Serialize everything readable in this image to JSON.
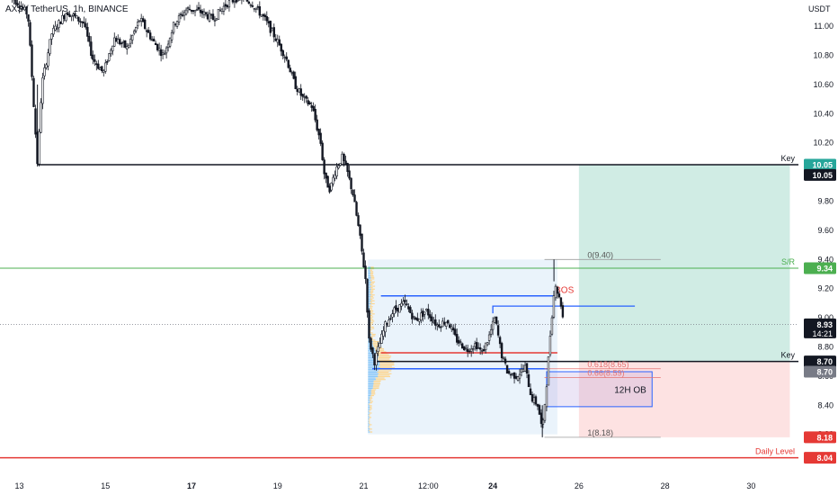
{
  "header": {
    "title": "AXS / TetherUS, 1h, BINANCE",
    "unit": "USDT"
  },
  "colors": {
    "candle": "#131722",
    "key_line": "#131722",
    "sr_line": "#4caf50",
    "daily_level": "#e53935",
    "bos": "#e53935",
    "ob_border": "#2962ff",
    "profit_zone": "#d0ece4",
    "loss_zone": "#fde2e2",
    "range_box": "#eaf3fb",
    "fib_text": "#e57373"
  },
  "chart_data": {
    "type": "candlestick",
    "symbol": "AXS / TetherUS",
    "timeframe": "1h",
    "exchange": "BINANCE",
    "ylim": [
      7.92,
      11.18
    ],
    "xlim": [
      12.55,
      31.1
    ],
    "x_ticks": [
      {
        "x": 13,
        "label": "13"
      },
      {
        "x": 15,
        "label": "15"
      },
      {
        "x": 17,
        "label": "17",
        "bold": true
      },
      {
        "x": 19,
        "label": "19"
      },
      {
        "x": 21,
        "label": "21"
      },
      {
        "x": 22.5,
        "label": "12:00"
      },
      {
        "x": 24,
        "label": "24",
        "bold": true
      },
      {
        "x": 26,
        "label": "26"
      },
      {
        "x": 28,
        "label": "28"
      },
      {
        "x": 30,
        "label": "30"
      }
    ],
    "y_ticks": [
      "11.00",
      "10.80",
      "10.60",
      "10.40",
      "10.20",
      "10.00",
      "9.80",
      "9.60",
      "9.40",
      "9.20",
      "9.00",
      "8.80",
      "8.60",
      "8.40",
      "8.20"
    ],
    "price_path": [
      {
        "x": 12.75,
        "y": 11.22
      },
      {
        "x": 13.0,
        "y": 11.15
      },
      {
        "x": 13.2,
        "y": 11.08
      },
      {
        "x": 13.3,
        "y": 10.62
      },
      {
        "x": 13.42,
        "y": 10.05
      },
      {
        "x": 13.52,
        "y": 10.6
      },
      {
        "x": 13.75,
        "y": 10.95
      },
      {
        "x": 14.1,
        "y": 11.1
      },
      {
        "x": 14.5,
        "y": 11.02
      },
      {
        "x": 14.7,
        "y": 10.78
      },
      {
        "x": 14.95,
        "y": 10.68
      },
      {
        "x": 15.2,
        "y": 10.92
      },
      {
        "x": 15.5,
        "y": 10.85
      },
      {
        "x": 15.8,
        "y": 11.05
      },
      {
        "x": 16.1,
        "y": 10.9
      },
      {
        "x": 16.35,
        "y": 10.8
      },
      {
        "x": 16.6,
        "y": 11.02
      },
      {
        "x": 16.9,
        "y": 11.12
      },
      {
        "x": 17.2,
        "y": 11.1
      },
      {
        "x": 17.5,
        "y": 11.05
      },
      {
        "x": 17.8,
        "y": 11.15
      },
      {
        "x": 18.1,
        "y": 11.2
      },
      {
        "x": 18.4,
        "y": 11.16
      },
      {
        "x": 18.7,
        "y": 11.05
      },
      {
        "x": 18.95,
        "y": 10.92
      },
      {
        "x": 19.2,
        "y": 10.78
      },
      {
        "x": 19.4,
        "y": 10.6
      },
      {
        "x": 19.6,
        "y": 10.5
      },
      {
        "x": 19.8,
        "y": 10.45
      },
      {
        "x": 20.0,
        "y": 10.2
      },
      {
        "x": 20.1,
        "y": 9.95
      },
      {
        "x": 20.22,
        "y": 9.88
      },
      {
        "x": 20.35,
        "y": 10.02
      },
      {
        "x": 20.5,
        "y": 10.1
      },
      {
        "x": 20.62,
        "y": 10.0
      },
      {
        "x": 20.75,
        "y": 9.85
      },
      {
        "x": 20.9,
        "y": 9.58
      },
      {
        "x": 21.05,
        "y": 9.25
      },
      {
        "x": 21.12,
        "y": 8.85
      },
      {
        "x": 21.25,
        "y": 8.7
      },
      {
        "x": 21.5,
        "y": 8.95
      },
      {
        "x": 21.7,
        "y": 9.05
      },
      {
        "x": 21.95,
        "y": 9.1
      },
      {
        "x": 22.2,
        "y": 8.98
      },
      {
        "x": 22.45,
        "y": 9.05
      },
      {
        "x": 22.7,
        "y": 8.95
      },
      {
        "x": 22.95,
        "y": 8.98
      },
      {
        "x": 23.15,
        "y": 8.85
      },
      {
        "x": 23.4,
        "y": 8.78
      },
      {
        "x": 23.6,
        "y": 8.82
      },
      {
        "x": 23.75,
        "y": 8.76
      },
      {
        "x": 23.9,
        "y": 8.86
      },
      {
        "x": 24.05,
        "y": 9.0
      },
      {
        "x": 24.2,
        "y": 8.75
      },
      {
        "x": 24.35,
        "y": 8.62
      },
      {
        "x": 24.55,
        "y": 8.6
      },
      {
        "x": 24.75,
        "y": 8.66
      },
      {
        "x": 24.9,
        "y": 8.45
      },
      {
        "x": 25.05,
        "y": 8.4
      },
      {
        "x": 25.15,
        "y": 8.22
      },
      {
        "x": 25.25,
        "y": 8.55
      },
      {
        "x": 25.35,
        "y": 8.95
      },
      {
        "x": 25.45,
        "y": 9.25
      },
      {
        "x": 25.52,
        "y": 9.15
      },
      {
        "x": 25.6,
        "y": 9.08
      },
      {
        "x": 25.65,
        "y": 8.93
      }
    ],
    "horizontal_levels": [
      {
        "name": "Key",
        "price": 10.05,
        "from_x": 13.42,
        "label": "Key",
        "tag": "10.05",
        "color": "#131722"
      },
      {
        "name": "S/R",
        "price": 9.34,
        "from_x": 12.55,
        "label": "S/R",
        "tag": "9.34",
        "color": "#4caf50"
      },
      {
        "name": "Key",
        "price": 8.7,
        "from_x": 21.25,
        "label": "Key",
        "tag": "8.70",
        "color": "#131722"
      },
      {
        "name": "Daily Level",
        "price": 8.04,
        "from_x": 12.55,
        "label": "Daily Level",
        "tag": "8.04",
        "color": "#e53935"
      }
    ],
    "fibonacci": [
      {
        "ratio": "0",
        "price": 9.4,
        "label": "0(9.40)"
      },
      {
        "ratio": "0.618",
        "price": 8.65,
        "label": "0.618(8.65)"
      },
      {
        "ratio": "0.66",
        "price": 8.59,
        "label": "0.66(8.59)"
      },
      {
        "ratio": "1",
        "price": 8.18,
        "label": "1(8.18)"
      }
    ],
    "order_block": {
      "label": "12H OB",
      "top": 8.63,
      "bottom": 8.39,
      "from_x": 25.25,
      "to_x": 27.7
    },
    "bos": {
      "label": "BOS",
      "price": 9.08,
      "from_x": 24.0,
      "to_x": 27.3
    },
    "range_box": {
      "top": 9.4,
      "bottom": 8.2,
      "from_x": 21.1,
      "to_x": 25.5
    },
    "range_lines": [
      {
        "price": 9.15,
        "from_x": 21.4,
        "to_x": 25.4,
        "color": "#2962ff"
      },
      {
        "price": 8.76,
        "from_x": 21.4,
        "to_x": 25.5,
        "color": "#e53935"
      },
      {
        "price": 8.65,
        "from_x": 21.2,
        "to_x": 25.3,
        "color": "#2962ff"
      }
    ],
    "position": {
      "entry": 8.7,
      "target": 10.05,
      "stop": 8.18,
      "from_x": 26.0,
      "to_x": 30.9
    },
    "price_tags": [
      {
        "text": "10.05",
        "price": 10.05,
        "bg": "#26a69a"
      },
      {
        "text": "10.05",
        "price": 9.98,
        "bg": "#131722"
      },
      {
        "text": "9.34",
        "price": 9.34,
        "bg": "#4caf50"
      },
      {
        "text": "8.93",
        "price": 8.955,
        "bg": "#131722",
        "sub": "14:21"
      },
      {
        "text": "8.70",
        "price": 8.7,
        "bg": "#131722"
      },
      {
        "text": "8.70",
        "price": 8.63,
        "bg": "#787b86"
      },
      {
        "text": "8.18",
        "price": 8.18,
        "bg": "#e53935"
      },
      {
        "text": "8.04",
        "price": 8.04,
        "bg": "#e53935"
      }
    ]
  }
}
